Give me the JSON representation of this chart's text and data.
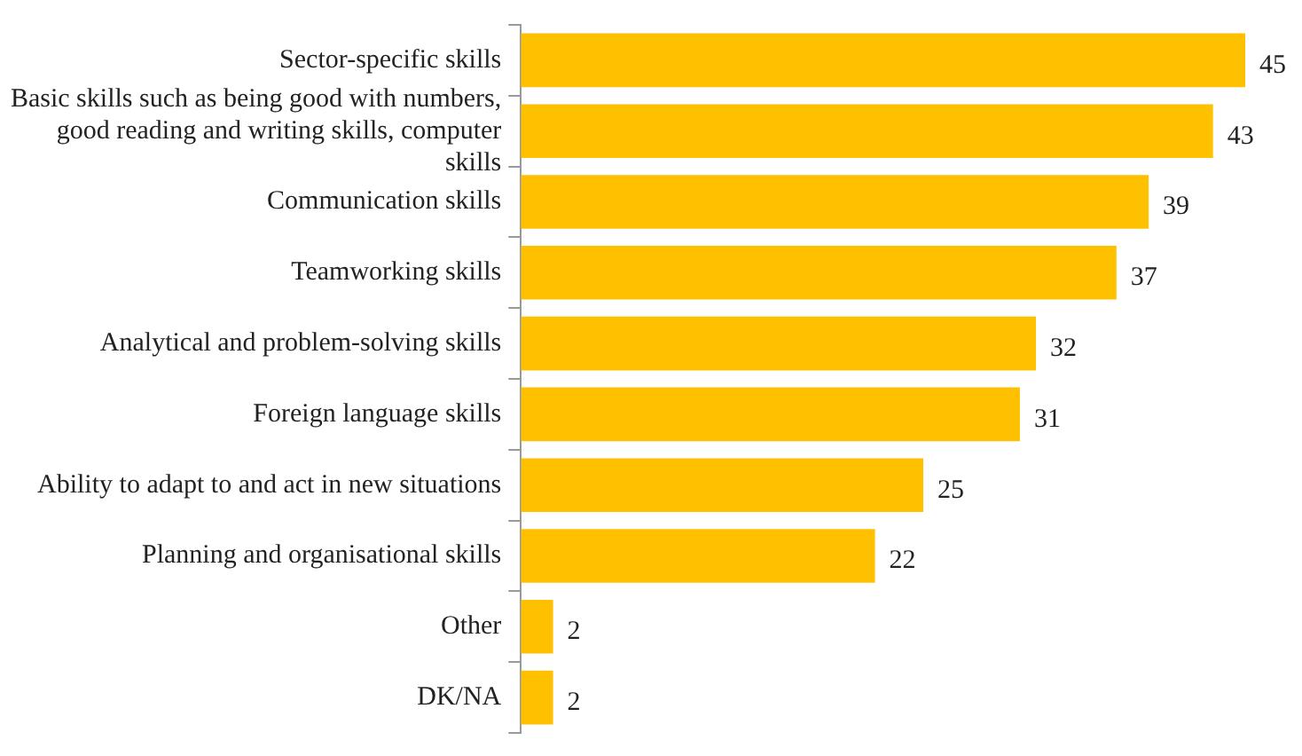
{
  "chart_data": {
    "type": "bar",
    "orientation": "horizontal",
    "color": "#ffc000",
    "data_labels": true,
    "grid": false,
    "legend": false,
    "categories": [
      "Sector-specific skills",
      "Basic skills such as being good with numbers, good reading and writing skills, computer skills",
      "Communication skills",
      "Teamworking skills",
      "Analytical and problem-solving skills",
      "Foreign language skills",
      "Ability to adapt to and act in new situations",
      "Planning and organisational skills",
      "Other",
      "DK/NA"
    ],
    "values": [
      45,
      43,
      39,
      37,
      32,
      31,
      25,
      22,
      2,
      2
    ]
  }
}
